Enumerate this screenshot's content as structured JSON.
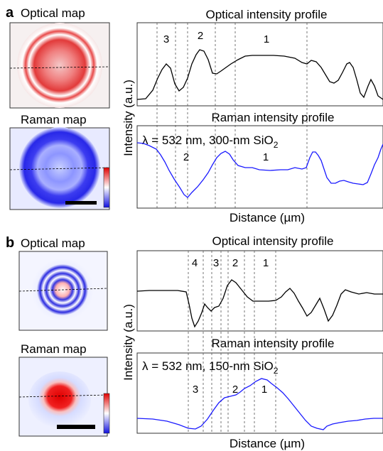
{
  "panels": [
    {
      "letter": "a",
      "optical_title": "Optical map",
      "raman_title": "Raman map",
      "opt_profile_title": "Optical intensity profile",
      "raman_profile_title": "Raman intensity profile",
      "condition_prefix": "λ = 532 nm, 300-nm SiO",
      "condition_subscript": "2",
      "xlabel": "Distance (µm)",
      "ylabel": "Intensity (a.u.)",
      "optical_region_labels": [
        "3",
        "2",
        "1"
      ],
      "raman_region_labels": [
        "2",
        "1"
      ],
      "optical_map_colormap": "red",
      "raman_map_colormap": "blue",
      "colors": {
        "optical_line": "#000000",
        "raman_line": "#1a1aff"
      }
    },
    {
      "letter": "b",
      "optical_title": "Optical map",
      "raman_title": "Raman map",
      "opt_profile_title": "Optical intensity profile",
      "raman_profile_title": "Raman intensity profile",
      "condition_prefix": "λ = 532 nm, 150-nm SiO",
      "condition_subscript": "2",
      "xlabel": "Distance (µm)",
      "ylabel": "Intensity (a.u.)",
      "optical_region_labels": [
        "4",
        "3",
        "2",
        "1"
      ],
      "raman_region_labels": [
        "3",
        "2",
        "1"
      ],
      "optical_map_colormap": "blue",
      "raman_map_colormap": "red",
      "colors": {
        "optical_line": "#000000",
        "raman_line": "#1a1aff"
      }
    }
  ],
  "colorbar": {
    "top_color": "#e00000",
    "mid_color": "#ffffff",
    "bottom_color": "#1010e0"
  }
}
